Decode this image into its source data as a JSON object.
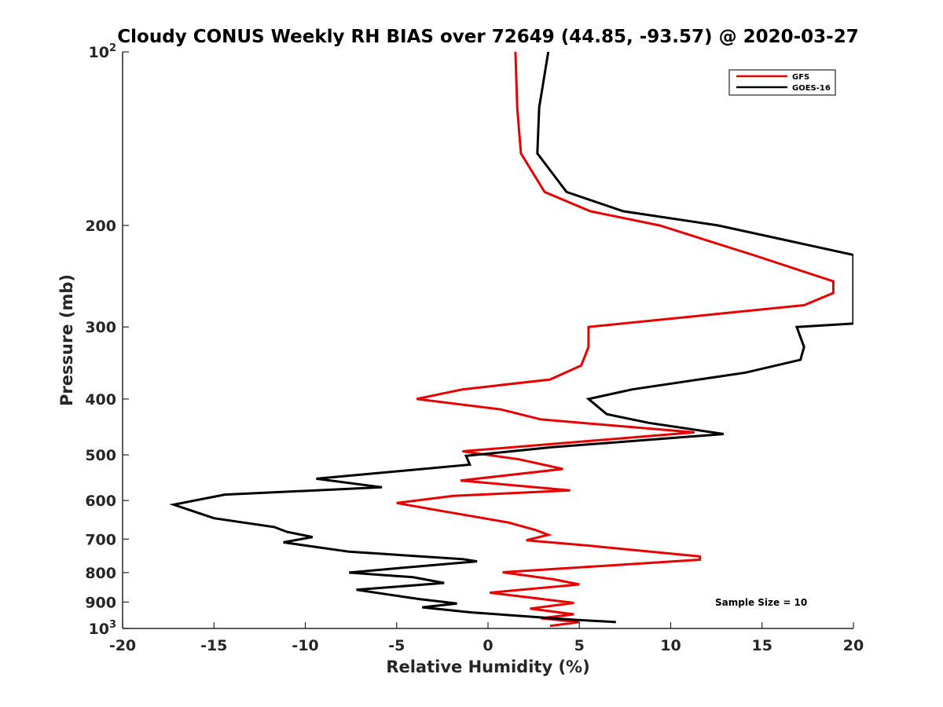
{
  "chart_data": {
    "type": "line",
    "title": "Cloudy CONUS Weekly RH BIAS over 72649 (44.85, -93.57) @ 2020-03-27",
    "xlabel": "Relative Humidity (%)",
    "ylabel": "Pressure (mb)",
    "xlim": [
      -20,
      20
    ],
    "ylim": [
      100,
      1000
    ],
    "y_scale": "log",
    "y_reversed": true,
    "x_ticks": [
      "-20",
      "-15",
      "-10",
      "-5",
      "0",
      "5",
      "10",
      "15",
      "20"
    ],
    "y_ticks": [
      {
        "value": 100,
        "base": "10",
        "exp": "2"
      },
      {
        "value": 200,
        "label": "200"
      },
      {
        "value": 300,
        "label": "300"
      },
      {
        "value": 400,
        "label": "400"
      },
      {
        "value": 500,
        "label": "500"
      },
      {
        "value": 600,
        "label": "600"
      },
      {
        "value": 700,
        "label": "700"
      },
      {
        "value": 800,
        "label": "800"
      },
      {
        "value": 900,
        "label": "900"
      },
      {
        "value": 1000,
        "base": "10",
        "exp": "3"
      }
    ],
    "grid": false,
    "legend_position": "top-right",
    "annotation": "Sample Size = 10",
    "series": [
      {
        "name": "GFS",
        "color": "#e60000",
        "points": [
          [
            1.5,
            100
          ],
          [
            1.6,
            125
          ],
          [
            1.8,
            150
          ],
          [
            3.1,
            175
          ],
          [
            5.6,
            189
          ],
          [
            9.4,
            200
          ],
          [
            14.5,
            225
          ],
          [
            18.9,
            250
          ],
          [
            18.9,
            262
          ],
          [
            17.3,
            275
          ],
          [
            5.5,
            300
          ],
          [
            5.5,
            325
          ],
          [
            5.1,
            350
          ],
          [
            3.4,
            370
          ],
          [
            -1.4,
            385
          ],
          [
            -3.9,
            400
          ],
          [
            0.7,
            417
          ],
          [
            2.9,
            434
          ],
          [
            11.3,
            457
          ],
          [
            -1.4,
            493
          ],
          [
            1.7,
            509
          ],
          [
            4.1,
            529
          ],
          [
            -1.5,
            554
          ],
          [
            4.5,
            576
          ],
          [
            -1.9,
            589
          ],
          [
            -5.0,
            606
          ],
          [
            -2.6,
            625
          ],
          [
            1.1,
            655
          ],
          [
            2.6,
            675
          ],
          [
            3.3,
            688
          ],
          [
            2.1,
            703
          ],
          [
            5.6,
            719
          ],
          [
            11.6,
            750
          ],
          [
            11.6,
            760
          ],
          [
            0.8,
            799
          ],
          [
            3.6,
            822
          ],
          [
            5.0,
            839
          ],
          [
            0.1,
            867
          ],
          [
            1.8,
            880
          ],
          [
            4.7,
            903
          ],
          [
            2.3,
            924
          ],
          [
            4.7,
            945
          ],
          [
            2.9,
            960
          ],
          [
            5.0,
            975
          ],
          [
            3.4,
            990
          ]
        ]
      },
      {
        "name": "GOES-16",
        "color": "#000000",
        "points": [
          [
            3.3,
            100
          ],
          [
            2.8,
            125
          ],
          [
            2.7,
            150
          ],
          [
            4.3,
            175
          ],
          [
            7.4,
            189
          ],
          [
            12.6,
            200
          ],
          [
            20.0,
            225
          ],
          [
            20.0,
            296
          ],
          [
            16.9,
            300
          ],
          [
            17.3,
            325
          ],
          [
            17.1,
            342
          ],
          [
            14.1,
            360
          ],
          [
            7.9,
            385
          ],
          [
            5.5,
            400
          ],
          [
            6.5,
            425
          ],
          [
            8.8,
            440
          ],
          [
            12.9,
            460
          ],
          [
            3.5,
            485
          ],
          [
            -1.2,
            502
          ],
          [
            -1.0,
            520
          ],
          [
            -9.4,
            550
          ],
          [
            -5.8,
            569
          ],
          [
            -14.4,
            586
          ],
          [
            -17.2,
            610
          ],
          [
            -15.0,
            644
          ],
          [
            -11.7,
            667
          ],
          [
            -11.0,
            680
          ],
          [
            -9.6,
            694
          ],
          [
            -11.2,
            709
          ],
          [
            -7.6,
            736
          ],
          [
            -1.4,
            758
          ],
          [
            -0.6,
            765
          ],
          [
            -4.9,
            786
          ],
          [
            -7.6,
            800
          ],
          [
            -4.1,
            815
          ],
          [
            -2.4,
            834
          ],
          [
            -7.2,
            857
          ],
          [
            -3.8,
            889
          ],
          [
            -1.7,
            905
          ],
          [
            -3.6,
            919
          ],
          [
            -0.9,
            938
          ],
          [
            4.5,
            965
          ],
          [
            7.0,
            975
          ]
        ]
      }
    ]
  }
}
